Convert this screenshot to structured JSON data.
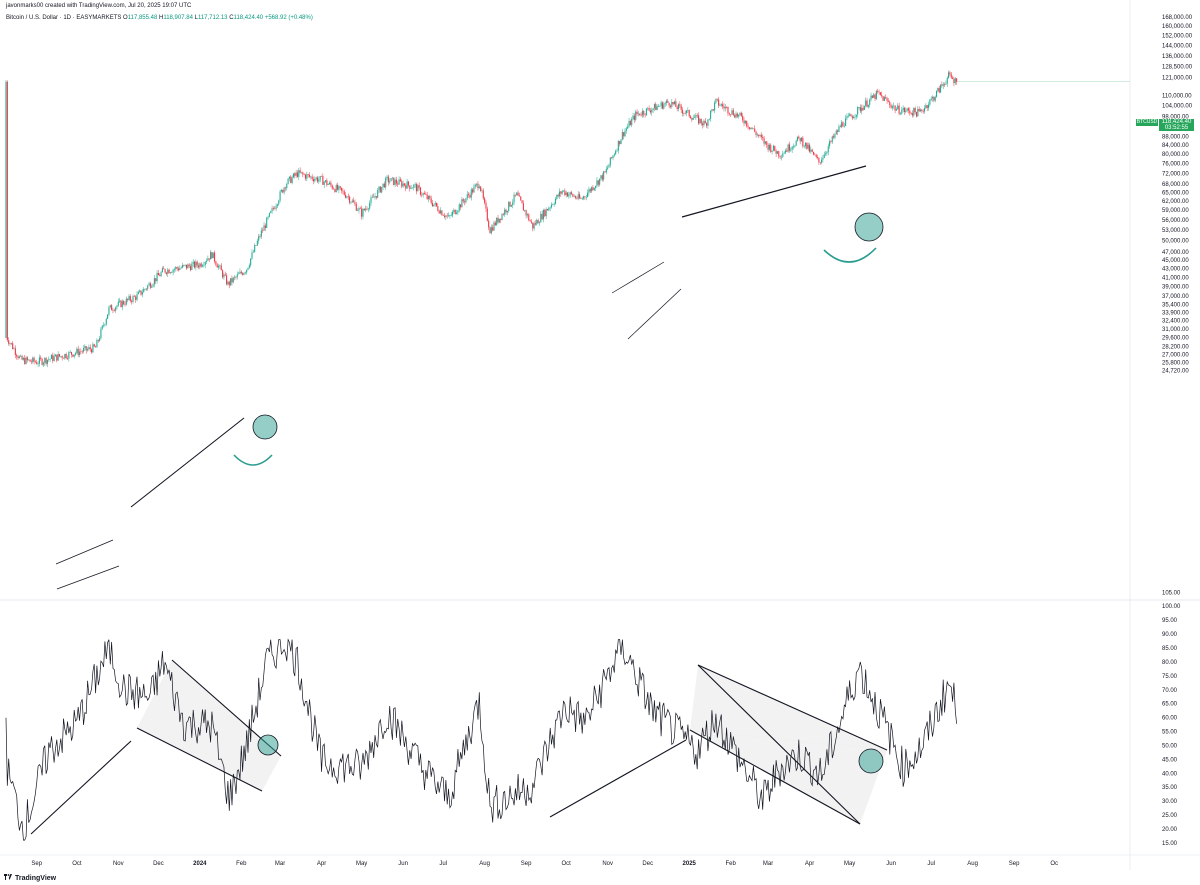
{
  "header": {
    "credit": "javonmarks00 created with TradingView.com, Jul 20, 2025 19:07 UTC",
    "symbol": "Bitcoin / U.S. Dollar · 1D · EASYMARKETS",
    "open_label": "O",
    "open": "117,855.48",
    "high_label": "H",
    "high": "118,907.84",
    "low_label": "L",
    "low": "117,712.13",
    "close_label": "C",
    "close": "118,424.40",
    "change": "+568.92 (+0.48%)"
  },
  "badge": {
    "symbol": "BTCUSD",
    "price": "118,424.40",
    "countdown": "03:52:55",
    "color": "#26a65b"
  },
  "footer": {
    "brand": "TradingView"
  },
  "colors": {
    "up": "#22ab94",
    "down": "#f23645",
    "osc": "#131722",
    "highlight": "#2a9d8f",
    "band": "#d9d9d9"
  },
  "chart_data": [
    {
      "type": "candlestick",
      "series_name": "",
      "x_tick_labels": [
        "Sep",
        "Oct",
        "Nov",
        "Dec",
        "2024",
        "Feb",
        "Mar",
        "Apr",
        "May",
        "Jun",
        "Jul",
        "Aug",
        "Sep",
        "Oct",
        "Nov",
        "Dec",
        "2025",
        "Feb",
        "Mar",
        "Apr",
        "May",
        "Jun",
        "Jul",
        "Aug",
        "Sep",
        "Oc"
      ],
      "y_tick_labels": [
        "168,000.00",
        "160,000.00",
        "152,000.00",
        "144,000.00",
        "136,000.00",
        "128,500.00",
        "121,000.00",
        "110,000.00",
        "104,000.00",
        "98,000.00",
        "92,000.00",
        "88,000.00",
        "84,000.00",
        "80,000.00",
        "76,000.00",
        "72,000.00",
        "68,000.00",
        "65,000.00",
        "62,000.00",
        "59,000.00",
        "56,000.00",
        "53,000.00",
        "50,000.00",
        "47,000.00",
        "45,000.00",
        "43,000.00",
        "41,000.00",
        "39,000.00",
        "37,000.00",
        "35,400.00",
        "33,900.00",
        "32,400.00",
        "31,000.00",
        "29,600.00",
        "28,200.00",
        "27,000.00",
        "25,800.00",
        "24,720.00"
      ],
      "y_scale": "log",
      "approx_close_path": [
        {
          "x": "2023-08-10",
          "y": 29500
        },
        {
          "x": "2023-08-20",
          "y": 26200
        },
        {
          "x": "2023-09-01",
          "y": 25900
        },
        {
          "x": "2023-09-20",
          "y": 26800
        },
        {
          "x": "2023-10-15",
          "y": 28000
        },
        {
          "x": "2023-10-25",
          "y": 34500
        },
        {
          "x": "2023-11-15",
          "y": 37000
        },
        {
          "x": "2023-12-05",
          "y": 42500
        },
        {
          "x": "2024-01-01",
          "y": 44000
        },
        {
          "x": "2024-01-10",
          "y": 46500
        },
        {
          "x": "2024-01-22",
          "y": 39500
        },
        {
          "x": "2024-02-05",
          "y": 43000
        },
        {
          "x": "2024-02-15",
          "y": 51500
        },
        {
          "x": "2024-03-05",
          "y": 68000
        },
        {
          "x": "2024-03-14",
          "y": 72000
        },
        {
          "x": "2024-04-01",
          "y": 69500
        },
        {
          "x": "2024-04-20",
          "y": 64000
        },
        {
          "x": "2024-05-01",
          "y": 58000
        },
        {
          "x": "2024-05-20",
          "y": 69500
        },
        {
          "x": "2024-06-10",
          "y": 67000
        },
        {
          "x": "2024-07-05",
          "y": 56500
        },
        {
          "x": "2024-07-28",
          "y": 68500
        },
        {
          "x": "2024-08-05",
          "y": 53000
        },
        {
          "x": "2024-08-25",
          "y": 64000
        },
        {
          "x": "2024-09-06",
          "y": 54000
        },
        {
          "x": "2024-09-28",
          "y": 65500
        },
        {
          "x": "2024-10-12",
          "y": 62500
        },
        {
          "x": "2024-10-30",
          "y": 72000
        },
        {
          "x": "2024-11-12",
          "y": 89000
        },
        {
          "x": "2024-11-22",
          "y": 99000
        },
        {
          "x": "2024-12-17",
          "y": 106000
        },
        {
          "x": "2025-01-13",
          "y": 94000
        },
        {
          "x": "2025-01-21",
          "y": 106000
        },
        {
          "x": "2025-02-10",
          "y": 97000
        },
        {
          "x": "2025-02-28",
          "y": 84000
        },
        {
          "x": "2025-03-10",
          "y": 80000
        },
        {
          "x": "2025-03-25",
          "y": 87000
        },
        {
          "x": "2025-04-08",
          "y": 76500
        },
        {
          "x": "2025-04-25",
          "y": 94000
        },
        {
          "x": "2025-05-22",
          "y": 111000
        },
        {
          "x": "2025-06-05",
          "y": 102000
        },
        {
          "x": "2025-06-22",
          "y": 100000
        },
        {
          "x": "2025-07-03",
          "y": 109000
        },
        {
          "x": "2025-07-14",
          "y": 122000
        },
        {
          "x": "2025-07-20",
          "y": 118424
        }
      ],
      "last_price": 118424.4
    },
    {
      "type": "line",
      "series_name": "",
      "y_tick_labels": [
        "105.00",
        "100.00",
        "95.00",
        "90.00",
        "85.00",
        "80.00",
        "75.00",
        "70.00",
        "65.00",
        "60.00",
        "55.00",
        "50.00",
        "45.00",
        "40.00",
        "35.00",
        "30.00",
        "25.00",
        "20.00",
        "15.00"
      ],
      "ylim": [
        15,
        105
      ],
      "approx_path": [
        {
          "x": "2023-08-10",
          "y": 41
        },
        {
          "x": "2023-08-22",
          "y": 20
        },
        {
          "x": "2023-09-10",
          "y": 48
        },
        {
          "x": "2023-10-01",
          "y": 58
        },
        {
          "x": "2023-10-25",
          "y": 85
        },
        {
          "x": "2023-11-05",
          "y": 70
        },
        {
          "x": "2023-11-25",
          "y": 67
        },
        {
          "x": "2023-12-05",
          "y": 80
        },
        {
          "x": "2023-12-20",
          "y": 58
        },
        {
          "x": "2024-01-10",
          "y": 57
        },
        {
          "x": "2024-01-23",
          "y": 31
        },
        {
          "x": "2024-02-05",
          "y": 50
        },
        {
          "x": "2024-02-20",
          "y": 80
        },
        {
          "x": "2024-03-05",
          "y": 88
        },
        {
          "x": "2024-03-14",
          "y": 80
        },
        {
          "x": "2024-04-01",
          "y": 44
        },
        {
          "x": "2024-05-01",
          "y": 42
        },
        {
          "x": "2024-05-20",
          "y": 62
        },
        {
          "x": "2024-06-15",
          "y": 42
        },
        {
          "x": "2024-07-05",
          "y": 31
        },
        {
          "x": "2024-07-28",
          "y": 66
        },
        {
          "x": "2024-08-05",
          "y": 28
        },
        {
          "x": "2024-09-06",
          "y": 36
        },
        {
          "x": "2024-09-30",
          "y": 64
        },
        {
          "x": "2024-10-15",
          "y": 58
        },
        {
          "x": "2024-11-12",
          "y": 86
        },
        {
          "x": "2024-12-05",
          "y": 62
        },
        {
          "x": "2025-01-07",
          "y": 48
        },
        {
          "x": "2025-01-21",
          "y": 60
        },
        {
          "x": "2025-02-25",
          "y": 30
        },
        {
          "x": "2025-03-10",
          "y": 42
        },
        {
          "x": "2025-03-25",
          "y": 47
        },
        {
          "x": "2025-04-10",
          "y": 39
        },
        {
          "x": "2025-05-08",
          "y": 78
        },
        {
          "x": "2025-05-25",
          "y": 60
        },
        {
          "x": "2025-06-10",
          "y": 42
        },
        {
          "x": "2025-06-25",
          "y": 50
        },
        {
          "x": "2025-07-14",
          "y": 72
        },
        {
          "x": "2025-07-20",
          "y": 63
        }
      ]
    }
  ]
}
